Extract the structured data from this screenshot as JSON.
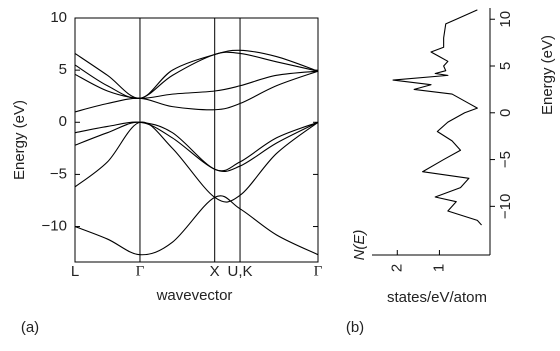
{
  "chart_data": [
    {
      "type": "line",
      "frame": "box",
      "grid": true,
      "panel_label": "(a)",
      "xlabel": "wavevector",
      "ylabel": "Energy (eV)",
      "x": [
        0,
        0.5,
        1,
        1.5,
        2.15,
        2.54,
        3.1,
        3.74
      ],
      "xlim": [
        0,
        3.74
      ],
      "xticks": [
        {
          "value": 0,
          "label": "L"
        },
        {
          "value": 1,
          "label": "Γ"
        },
        {
          "value": 2.15,
          "label": "X"
        },
        {
          "value": 2.54,
          "label": "U,K"
        },
        {
          "value": 3.74,
          "label": "Γ"
        }
      ],
      "ylim": [
        -13.4,
        10
      ],
      "yticks": [
        {
          "value": -10,
          "label": "−10"
        },
        {
          "value": -5,
          "label": "−5"
        },
        0,
        5,
        10
      ],
      "series": [
        {
          "color": "#000000",
          "values": [
            -10.0,
            -11.2,
            -12.7,
            -11.5,
            -7.2,
            -8.3,
            -10.8,
            -12.7
          ]
        },
        {
          "color": "#000000",
          "values": [
            -6.2,
            -3.8,
            0,
            -2.5,
            -7.2,
            -7.0,
            -3.0,
            0
          ]
        },
        {
          "color": "#000000",
          "values": [
            -2.2,
            -1.0,
            0,
            -1.5,
            -4.5,
            -4.2,
            -2.0,
            0
          ]
        },
        {
          "color": "#000000",
          "values": [
            -1.0,
            -0.4,
            0,
            -1.0,
            -4.5,
            -3.8,
            -1.5,
            0
          ]
        },
        {
          "color": "#000000",
          "values": [
            1.0,
            1.8,
            2.3,
            1.5,
            1.2,
            1.8,
            3.5,
            4.9
          ]
        },
        {
          "color": "#000000",
          "values": [
            4.6,
            3.0,
            2.3,
            2.7,
            3.0,
            3.5,
            4.5,
            4.9
          ]
        },
        {
          "color": "#000000",
          "values": [
            5.5,
            3.5,
            2.3,
            4.5,
            6.5,
            6.6,
            5.8,
            4.9
          ]
        },
        {
          "color": "#000000",
          "values": [
            6.6,
            4.5,
            2.3,
            5.0,
            6.5,
            6.9,
            6.3,
            4.9
          ]
        }
      ]
    },
    {
      "type": "dos",
      "frame": "open",
      "grid": false,
      "panel_label": "(b)",
      "xlabel": "states/eV/atom",
      "xlabel_symbol": "N(E)",
      "ylabel": "Energy (eV)",
      "xlim": [
        2.6,
        -0.2
      ],
      "xticks": [
        2,
        1
      ],
      "ylim": [
        -15.2,
        11.2
      ],
      "yticks": [
        {
          "value": -10,
          "label": "−10"
        },
        {
          "value": -5,
          "label": "−5"
        },
        0,
        5,
        10
      ],
      "color": "#000000",
      "x": [
        0.1,
        0.6,
        0.85,
        0.9,
        0.9,
        1.2,
        1.0,
        0.8,
        0.9,
        0.85,
        1.1,
        0.8,
        2.1,
        1.2,
        1.6,
        0.7,
        0.3,
        0.1,
        0.4,
        0.8,
        1.05,
        0.7,
        0.5,
        0.9,
        1.4,
        0.3,
        0.5,
        1.1,
        0.6,
        0.8,
        0.1,
        0
      ],
      "values": [
        11,
        10,
        9.5,
        8,
        7,
        6.5,
        6,
        5.5,
        5,
        4.5,
        4.2,
        4,
        3.5,
        3,
        2.5,
        2,
        1,
        0.5,
        0,
        -1,
        -2,
        -3,
        -4,
        -5,
        -6.3,
        -7,
        -8,
        -9,
        -9.5,
        -10.5,
        -11.5,
        -12
      ]
    }
  ]
}
